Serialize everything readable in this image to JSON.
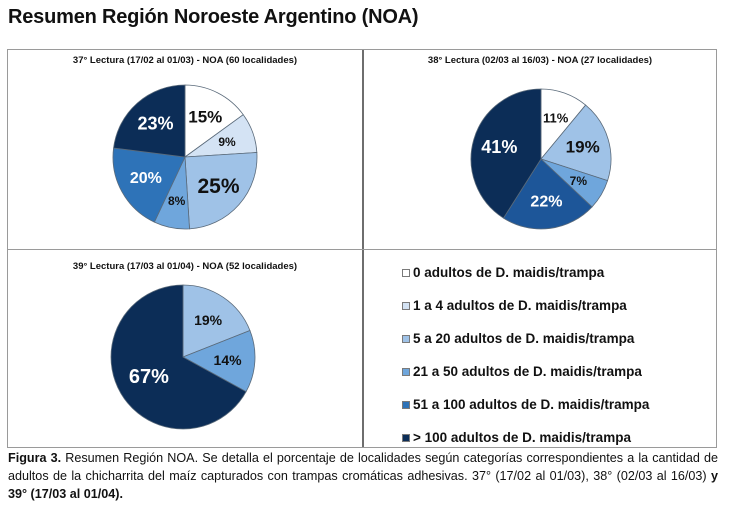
{
  "page_title": "Resumen Región Noroeste Argentino (NOA)",
  "legend": {
    "items": [
      {
        "label": "0 adultos de D. maidis/trampa",
        "color": "#ffffff"
      },
      {
        "label": "1 a 4 adultos de D. maidis/trampa",
        "color": "#d4e3f4"
      },
      {
        "label": "5 a 20 adultos de D. maidis/trampa",
        "color": "#9fc2e7"
      },
      {
        "label": "21 a 50 adultos de D. maidis/trampa",
        "color": "#6fa6dc"
      },
      {
        "label": "51 a 100 adultos de D. maidis/trampa",
        "color": "#2e73b8"
      },
      {
        "label": "> 100 adultos de D. maidis/trampa",
        "color": "#0c2d57"
      }
    ]
  },
  "caption": {
    "label": "Figura 3.",
    "text": " Resumen Región NOA. Se detalla el porcentaje de localidades según categorías correspondientes a la cantidad de adultos de la chicharrita del maíz capturados con trampas cromáticas adhesivas. 37° (17/02 al 01/03), 38° (02/03 al 16/03) ",
    "bold_tail": "y 39° (17/03 al 01/04)."
  },
  "chart_data": [
    {
      "type": "pie",
      "title": "37° Lectura (17/02 al 01/03) - NOA (60 localidades)",
      "categories": [
        "0 adultos de D. maidis/trampa",
        "1 a 4 adultos de D. maidis/trampa",
        "5 a 20 adultos de D. maidis/trampa",
        "21 a 50 adultos de D. maidis/trampa",
        "51 a 100 adultos de D. maidis/trampa",
        "> 100 adultos de D. maidis/trampa"
      ],
      "values": [
        15,
        9,
        25,
        8,
        20,
        23
      ],
      "labels": [
        "15%",
        "9%",
        "25%",
        "8%",
        "20%",
        "23%"
      ],
      "colors": [
        "#ffffff",
        "#d4e3f4",
        "#9fc2e7",
        "#6fa6dc",
        "#2e73b8",
        "#0c2d57"
      ],
      "label_colors": [
        "#111111",
        "#111111",
        "#111111",
        "#111111",
        "#ffffff",
        "#ffffff"
      ]
    },
    {
      "type": "pie",
      "title": "38° Lectura (02/03 al 16/03) - NOA (27 localidades)",
      "categories": [
        "0 adultos de D. maidis/trampa",
        "5 a 20 adultos de D. maidis/trampa",
        "21 a 50 adultos de D. maidis/trampa",
        "51 a 100 adultos de D. maidis/trampa",
        "> 100 adultos de D. maidis/trampa"
      ],
      "values": [
        11,
        19,
        7,
        22,
        41
      ],
      "labels": [
        "11%",
        "19%",
        "7%",
        "22%",
        "41%"
      ],
      "colors": [
        "#ffffff",
        "#9fc2e7",
        "#6fa6dc",
        "#1d5699",
        "#0c2d57"
      ],
      "label_colors": [
        "#111111",
        "#111111",
        "#111111",
        "#ffffff",
        "#ffffff"
      ]
    },
    {
      "type": "pie",
      "title": "39° Lectura (17/03 al 01/04) - NOA (52 localidades)",
      "categories": [
        "5 a 20 adultos de D. maidis/trampa",
        "21 a 50 adultos de D. maidis/trampa",
        "> 100 adultos de D. maidis/trampa"
      ],
      "values": [
        19,
        14,
        67
      ],
      "labels": [
        "19%",
        "14%",
        "67%"
      ],
      "colors": [
        "#9fc2e7",
        "#6fa6dc",
        "#0c2d57"
      ],
      "label_colors": [
        "#111111",
        "#111111",
        "#ffffff"
      ]
    }
  ]
}
